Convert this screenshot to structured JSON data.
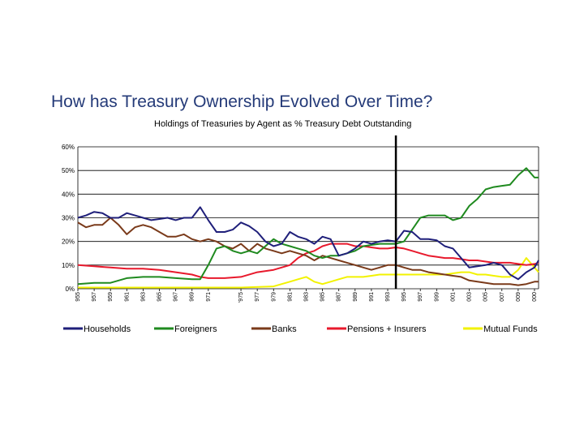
{
  "chart_data": {
    "type": "line",
    "title": "How has Treasury Ownership Evolved Over Time?",
    "subtitle": "Holdings of Treasuries by Agent as % Treasury Debt Outstanding",
    "xlabel": "",
    "ylabel": "",
    "xlim": [
      1955,
      2011.5
    ],
    "ylim": [
      0,
      60
    ],
    "grid": true,
    "legend_position": "bottom",
    "y_ticks": [
      {
        "value": 0,
        "label": "0%"
      },
      {
        "value": 10,
        "label": "10%"
      },
      {
        "value": 20,
        "label": "20%"
      },
      {
        "value": 30,
        "label": "30%"
      },
      {
        "value": 40,
        "label": "40%"
      },
      {
        "value": 50,
        "label": "50%"
      },
      {
        "value": 60,
        "label": "60%"
      }
    ],
    "x_ticks": [
      {
        "value": 1955,
        "label": "955"
      },
      {
        "value": 1957,
        "label": "957"
      },
      {
        "value": 1959,
        "label": "959"
      },
      {
        "value": 1961,
        "label": "961"
      },
      {
        "value": 1963,
        "label": "963"
      },
      {
        "value": 1965,
        "label": "965"
      },
      {
        "value": 1967,
        "label": "967"
      },
      {
        "value": 1969,
        "label": "969"
      },
      {
        "value": 1971,
        "label": "971"
      },
      {
        "value": 1975,
        "label": "'975"
      },
      {
        "value": 1977,
        "label": "977"
      },
      {
        "value": 1979,
        "label": "979"
      },
      {
        "value": 1981,
        "label": "981"
      },
      {
        "value": 1983,
        "label": "983"
      },
      {
        "value": 1985,
        "label": "985"
      },
      {
        "value": 1987,
        "label": "987"
      },
      {
        "value": 1989,
        "label": "989"
      },
      {
        "value": 1991,
        "label": "991"
      },
      {
        "value": 1993,
        "label": "993"
      },
      {
        "value": 1995,
        "label": "995"
      },
      {
        "value": 1997,
        "label": "997"
      },
      {
        "value": 1999,
        "label": "999"
      },
      {
        "value": 2001,
        "label": "001"
      },
      {
        "value": 2003,
        "label": "003"
      },
      {
        "value": 2005,
        "label": "005"
      },
      {
        "value": 2007,
        "label": "007"
      },
      {
        "value": 2009,
        "label": "009"
      },
      {
        "value": 2011,
        "label": "000"
      }
    ],
    "marker_line_x": 1994,
    "series": [
      {
        "name": "Households",
        "color": "#1f1f7a",
        "points": [
          [
            1955,
            30
          ],
          [
            1956,
            31
          ],
          [
            1957,
            32.5
          ],
          [
            1958,
            32
          ],
          [
            1959,
            30
          ],
          [
            1960,
            30
          ],
          [
            1961,
            32
          ],
          [
            1962,
            31
          ],
          [
            1963,
            30
          ],
          [
            1964,
            29
          ],
          [
            1965,
            29.5
          ],
          [
            1966,
            30
          ],
          [
            1967,
            29
          ],
          [
            1968,
            30
          ],
          [
            1969,
            30
          ],
          [
            1970,
            34.5
          ],
          [
            1971,
            29
          ],
          [
            1972,
            24
          ],
          [
            1973,
            24
          ],
          [
            1974,
            25
          ],
          [
            1975,
            28
          ],
          [
            1976,
            26.5
          ],
          [
            1977,
            24
          ],
          [
            1978,
            20
          ],
          [
            1979,
            18
          ],
          [
            1980,
            19
          ],
          [
            1981,
            24
          ],
          [
            1982,
            22
          ],
          [
            1983,
            21
          ],
          [
            1984,
            19
          ],
          [
            1985,
            22
          ],
          [
            1986,
            21
          ],
          [
            1987,
            14
          ],
          [
            1988,
            15
          ],
          [
            1989,
            17
          ],
          [
            1990,
            20
          ],
          [
            1991,
            19
          ],
          [
            1992,
            20
          ],
          [
            1993,
            20.5
          ],
          [
            1994,
            20
          ],
          [
            1995,
            24.5
          ],
          [
            1996,
            24
          ],
          [
            1997,
            21
          ],
          [
            1998,
            21
          ],
          [
            1999,
            20.5
          ],
          [
            2000,
            18
          ],
          [
            2001,
            17
          ],
          [
            2002,
            13
          ],
          [
            2003,
            9
          ],
          [
            2004,
            9.5
          ],
          [
            2005,
            10
          ],
          [
            2006,
            11
          ],
          [
            2007,
            10
          ],
          [
            2008,
            6
          ],
          [
            2009,
            4
          ],
          [
            2010,
            7
          ],
          [
            2011,
            9
          ],
          [
            2011.5,
            12
          ]
        ]
      },
      {
        "name": "Foreigners",
        "color": "#1f8a1f",
        "points": [
          [
            1955,
            2
          ],
          [
            1957,
            2.5
          ],
          [
            1959,
            2.5
          ],
          [
            1961,
            4.5
          ],
          [
            1963,
            5
          ],
          [
            1965,
            5
          ],
          [
            1967,
            4.5
          ],
          [
            1969,
            4
          ],
          [
            1970,
            4
          ],
          [
            1971,
            10
          ],
          [
            1972,
            17
          ],
          [
            1973,
            18
          ],
          [
            1974,
            16
          ],
          [
            1975,
            15
          ],
          [
            1976,
            16
          ],
          [
            1977,
            15
          ],
          [
            1978,
            18
          ],
          [
            1979,
            21
          ],
          [
            1980,
            19
          ],
          [
            1981,
            18
          ],
          [
            1982,
            17
          ],
          [
            1983,
            16
          ],
          [
            1984,
            14
          ],
          [
            1985,
            13
          ],
          [
            1986,
            14
          ],
          [
            1987,
            14
          ],
          [
            1988,
            15
          ],
          [
            1989,
            16
          ],
          [
            1990,
            18
          ],
          [
            1991,
            18.5
          ],
          [
            1992,
            19
          ],
          [
            1993,
            19
          ],
          [
            1994,
            19
          ],
          [
            1995,
            20
          ],
          [
            1996,
            25
          ],
          [
            1997,
            30
          ],
          [
            1998,
            31
          ],
          [
            1999,
            31
          ],
          [
            2000,
            31
          ],
          [
            2001,
            29
          ],
          [
            2002,
            30
          ],
          [
            2003,
            35
          ],
          [
            2004,
            38
          ],
          [
            2005,
            42
          ],
          [
            2006,
            43
          ],
          [
            2007,
            43.5
          ],
          [
            2008,
            44
          ],
          [
            2009,
            48
          ],
          [
            2010,
            51
          ],
          [
            2011,
            47
          ],
          [
            2011.5,
            47
          ]
        ]
      },
      {
        "name": "Banks",
        "color": "#7a3a1a",
        "points": [
          [
            1955,
            28
          ],
          [
            1956,
            26
          ],
          [
            1957,
            27
          ],
          [
            1958,
            27
          ],
          [
            1959,
            30
          ],
          [
            1960,
            27
          ],
          [
            1961,
            23
          ],
          [
            1962,
            26
          ],
          [
            1963,
            27
          ],
          [
            1964,
            26
          ],
          [
            1965,
            24
          ],
          [
            1966,
            22
          ],
          [
            1967,
            22
          ],
          [
            1968,
            23
          ],
          [
            1969,
            21
          ],
          [
            1970,
            20
          ],
          [
            1971,
            21
          ],
          [
            1972,
            20
          ],
          [
            1973,
            18
          ],
          [
            1974,
            17
          ],
          [
            1975,
            19
          ],
          [
            1976,
            16
          ],
          [
            1977,
            19
          ],
          [
            1978,
            17
          ],
          [
            1979,
            16
          ],
          [
            1980,
            15
          ],
          [
            1981,
            16
          ],
          [
            1982,
            15
          ],
          [
            1983,
            14
          ],
          [
            1984,
            12
          ],
          [
            1985,
            14
          ],
          [
            1986,
            13
          ],
          [
            1987,
            12
          ],
          [
            1988,
            11
          ],
          [
            1989,
            10
          ],
          [
            1990,
            9
          ],
          [
            1991,
            8
          ],
          [
            1992,
            9
          ],
          [
            1993,
            10
          ],
          [
            1994,
            10
          ],
          [
            1995,
            9
          ],
          [
            1996,
            8
          ],
          [
            1997,
            8
          ],
          [
            1998,
            7
          ],
          [
            1999,
            6.5
          ],
          [
            2000,
            6
          ],
          [
            2001,
            5.5
          ],
          [
            2002,
            5
          ],
          [
            2003,
            3.5
          ],
          [
            2004,
            3
          ],
          [
            2005,
            2.5
          ],
          [
            2006,
            2
          ],
          [
            2007,
            2
          ],
          [
            2008,
            2
          ],
          [
            2009,
            1.5
          ],
          [
            2010,
            2
          ],
          [
            2011,
            3
          ],
          [
            2011.5,
            3
          ]
        ]
      },
      {
        "name": "Pensions + Insurers",
        "color": "#e8192c",
        "points": [
          [
            1955,
            10
          ],
          [
            1957,
            9.5
          ],
          [
            1959,
            9
          ],
          [
            1961,
            8.5
          ],
          [
            1963,
            8.5
          ],
          [
            1965,
            8
          ],
          [
            1967,
            7
          ],
          [
            1969,
            6
          ],
          [
            1970,
            5
          ],
          [
            1971,
            4.5
          ],
          [
            1973,
            4.5
          ],
          [
            1975,
            5
          ],
          [
            1977,
            7
          ],
          [
            1979,
            8
          ],
          [
            1981,
            10
          ],
          [
            1982,
            13
          ],
          [
            1983,
            15
          ],
          [
            1984,
            16
          ],
          [
            1985,
            18
          ],
          [
            1986,
            19
          ],
          [
            1987,
            19
          ],
          [
            1988,
            19
          ],
          [
            1989,
            18
          ],
          [
            1990,
            18
          ],
          [
            1991,
            17.5
          ],
          [
            1992,
            17
          ],
          [
            1993,
            17
          ],
          [
            1994,
            17.5
          ],
          [
            1995,
            17
          ],
          [
            1996,
            16
          ],
          [
            1997,
            15
          ],
          [
            1998,
            14
          ],
          [
            1999,
            13.5
          ],
          [
            2000,
            13
          ],
          [
            2001,
            13
          ],
          [
            2002,
            12.5
          ],
          [
            2003,
            12
          ],
          [
            2004,
            12
          ],
          [
            2005,
            11.5
          ],
          [
            2006,
            11
          ],
          [
            2007,
            11
          ],
          [
            2008,
            11
          ],
          [
            2009,
            10.5
          ],
          [
            2010,
            10
          ],
          [
            2011,
            10.5
          ],
          [
            2011.5,
            11
          ]
        ]
      },
      {
        "name": "Mutual Funds",
        "color": "#f2f200",
        "points": [
          [
            1955,
            0.5
          ],
          [
            1960,
            0.5
          ],
          [
            1965,
            0.5
          ],
          [
            1970,
            0.5
          ],
          [
            1975,
            0.5
          ],
          [
            1979,
            1
          ],
          [
            1980,
            2
          ],
          [
            1981,
            3
          ],
          [
            1982,
            4
          ],
          [
            1983,
            5
          ],
          [
            1984,
            3
          ],
          [
            1985,
            2
          ],
          [
            1986,
            3
          ],
          [
            1987,
            4
          ],
          [
            1988,
            5
          ],
          [
            1989,
            5
          ],
          [
            1990,
            5
          ],
          [
            1991,
            5.5
          ],
          [
            1992,
            6
          ],
          [
            1993,
            6
          ],
          [
            1994,
            6
          ],
          [
            1995,
            6
          ],
          [
            1996,
            6
          ],
          [
            1997,
            6
          ],
          [
            1998,
            6
          ],
          [
            1999,
            6
          ],
          [
            2000,
            6
          ],
          [
            2001,
            6.5
          ],
          [
            2002,
            7
          ],
          [
            2003,
            7
          ],
          [
            2004,
            6
          ],
          [
            2005,
            6
          ],
          [
            2006,
            5.5
          ],
          [
            2007,
            5
          ],
          [
            2008,
            5
          ],
          [
            2009,
            8
          ],
          [
            2010,
            13
          ],
          [
            2011,
            9
          ],
          [
            2011.5,
            7
          ]
        ]
      }
    ]
  }
}
